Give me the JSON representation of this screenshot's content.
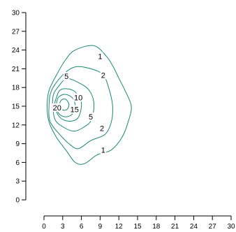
{
  "chart_data": {
    "type": "contour",
    "title": "",
    "xlabel": "",
    "ylabel": "",
    "xlim": [
      0,
      30
    ],
    "ylim": [
      0,
      30
    ],
    "xticks": [
      "0",
      "3",
      "6",
      "9",
      "12",
      "15",
      "18",
      "21",
      "24",
      "27",
      "30"
    ],
    "yticks": [
      "0",
      "3",
      "6",
      "9",
      "12",
      "15",
      "18",
      "21",
      "24",
      "27",
      "30"
    ],
    "grid": false,
    "line_color": "#1a8a6e",
    "peak": {
      "x": 3,
      "y": 15
    },
    "levels": [
      {
        "level": 1,
        "label": "1",
        "label_positions": [
          [
            9,
            23
          ],
          [
            9.5,
            8
          ]
        ],
        "points": [
          [
            5,
            24
          ],
          [
            8,
            24.7
          ],
          [
            10,
            23
          ],
          [
            11,
            21.5
          ],
          [
            12,
            19.5
          ],
          [
            13,
            17.5
          ],
          [
            14,
            15
          ],
          [
            13.5,
            12.5
          ],
          [
            12.5,
            10
          ],
          [
            10.8,
            8
          ],
          [
            8.5,
            7.2
          ],
          [
            6.5,
            5.8
          ],
          [
            5,
            6
          ],
          [
            3.5,
            8
          ],
          [
            2,
            10
          ],
          [
            0.8,
            12.5
          ],
          [
            0.5,
            15
          ],
          [
            0.8,
            17.5
          ],
          [
            2,
            20
          ],
          [
            3.5,
            22.5
          ]
        ]
      },
      {
        "level": 2,
        "label": "2",
        "label_positions": [
          [
            9.5,
            20
          ],
          [
            9.3,
            11.5
          ]
        ],
        "points": [
          [
            3,
            20
          ],
          [
            5,
            21.3
          ],
          [
            7.5,
            21
          ],
          [
            9.5,
            20
          ],
          [
            10.5,
            17.5
          ],
          [
            11,
            15
          ],
          [
            10.8,
            12.5
          ],
          [
            9.8,
            10.5
          ],
          [
            7.5,
            9.5
          ],
          [
            5.5,
            8.2
          ],
          [
            4,
            9
          ],
          [
            2.5,
            10.5
          ],
          [
            1,
            12.5
          ],
          [
            0.8,
            15
          ],
          [
            1.2,
            17.5
          ]
        ]
      },
      {
        "level": 5,
        "label": "5",
        "label_positions": [
          [
            3.6,
            19.8
          ],
          [
            7.5,
            13.3
          ]
        ],
        "points": [
          [
            2.2,
            18
          ],
          [
            3.6,
            19.4
          ],
          [
            5.5,
            18.8
          ],
          [
            7.2,
            17.6
          ],
          [
            8,
            15.5
          ],
          [
            7.6,
            12.8
          ],
          [
            6.3,
            11.6
          ],
          [
            4.8,
            11
          ],
          [
            3.2,
            11.6
          ],
          [
            1.8,
            12.8
          ],
          [
            1.4,
            15
          ],
          [
            1.5,
            16.8
          ]
        ]
      },
      {
        "level": 10,
        "label": "10",
        "label_positions": [
          [
            5.5,
            16.4
          ]
        ],
        "points": [
          [
            2,
            16.4
          ],
          [
            2.5,
            17.5
          ],
          [
            3.6,
            17.8
          ],
          [
            5,
            17.3
          ],
          [
            6,
            15.5
          ],
          [
            5.5,
            13.2
          ],
          [
            4.2,
            12.6
          ],
          [
            2.8,
            13
          ],
          [
            2,
            14.1
          ],
          [
            1.7,
            15.3
          ]
        ]
      },
      {
        "level": 15,
        "label": "15",
        "label_positions": [
          [
            4.9,
            14.5
          ]
        ],
        "points": [
          [
            2,
            15
          ],
          [
            2.3,
            16.4
          ],
          [
            3.4,
            16.9
          ],
          [
            4.6,
            16.3
          ],
          [
            5,
            15
          ],
          [
            4.5,
            13.7
          ],
          [
            3.4,
            13.3
          ],
          [
            2.4,
            13.8
          ]
        ]
      },
      {
        "level": 20,
        "label": "20",
        "label_positions": [
          [
            2.1,
            14.8
          ]
        ],
        "points": [
          [
            2.5,
            15.2
          ],
          [
            2.8,
            16
          ],
          [
            3.5,
            16.1
          ],
          [
            4,
            15.3
          ],
          [
            3.7,
            14.5
          ],
          [
            3,
            14.4
          ]
        ]
      }
    ]
  }
}
